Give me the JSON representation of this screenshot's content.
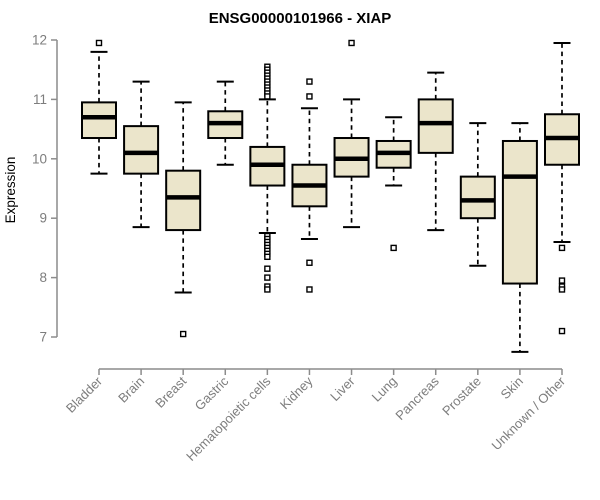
{
  "chart_data": {
    "type": "boxplot",
    "title": "ENSG00000101966 - XIAP",
    "xlabel": "",
    "ylabel": "Expression",
    "ylim": [
      7,
      12
    ],
    "yticks": [
      7,
      8,
      9,
      10,
      11,
      12
    ],
    "grid": false,
    "legend": "none",
    "box_fill": "#EBE5CB",
    "box_stroke": "#000000",
    "median_color": "#000000",
    "axis_line_color": "#8c8c8c",
    "axis_text_color": "#7d7d7d",
    "categories": [
      "Bladder",
      "Brain",
      "Breast",
      "Gastric",
      "Hematopoietic cells",
      "Kidney",
      "Liver",
      "Lung",
      "Pancreas",
      "Prostate",
      "Skin",
      "Unknown / Other"
    ],
    "boxes": [
      {
        "category": "Bladder",
        "low": 9.75,
        "q1": 10.35,
        "median": 10.7,
        "q3": 10.95,
        "high": 11.8,
        "outliers": [
          11.95
        ]
      },
      {
        "category": "Brain",
        "low": 8.85,
        "q1": 9.75,
        "median": 10.1,
        "q3": 10.55,
        "high": 11.3,
        "outliers": []
      },
      {
        "category": "Breast",
        "low": 7.75,
        "q1": 8.8,
        "median": 9.35,
        "q3": 9.8,
        "high": 10.95,
        "outliers": [
          7.05
        ]
      },
      {
        "category": "Gastric",
        "low": 9.9,
        "q1": 10.35,
        "median": 10.6,
        "q3": 10.8,
        "high": 11.3,
        "outliers": []
      },
      {
        "category": "Hematopoietic cells",
        "low": 8.75,
        "q1": 9.55,
        "median": 9.9,
        "q3": 10.2,
        "high": 11.0,
        "outliers": [
          11.55,
          11.5,
          11.45,
          11.4,
          11.35,
          11.3,
          11.25,
          11.2,
          11.15,
          11.1,
          11.05,
          8.7,
          8.65,
          8.6,
          8.55,
          8.5,
          8.45,
          8.4,
          8.35,
          8.15,
          8.0,
          7.85,
          7.8
        ]
      },
      {
        "category": "Kidney",
        "low": 8.65,
        "q1": 9.2,
        "median": 9.55,
        "q3": 9.9,
        "high": 10.85,
        "outliers": [
          11.3,
          11.05,
          8.25,
          7.8
        ]
      },
      {
        "category": "Liver",
        "low": 8.85,
        "q1": 9.7,
        "median": 10.0,
        "q3": 10.35,
        "high": 11.0,
        "outliers": [
          11.95
        ]
      },
      {
        "category": "Lung",
        "low": 9.55,
        "q1": 9.85,
        "median": 10.1,
        "q3": 10.3,
        "high": 10.7,
        "outliers": [
          8.5
        ]
      },
      {
        "category": "Pancreas",
        "low": 8.8,
        "q1": 10.1,
        "median": 10.6,
        "q3": 11.0,
        "high": 11.45,
        "outliers": []
      },
      {
        "category": "Prostate",
        "low": 8.2,
        "q1": 9.0,
        "median": 9.3,
        "q3": 9.7,
        "high": 10.6,
        "outliers": []
      },
      {
        "category": "Skin",
        "low": 6.75,
        "q1": 7.9,
        "median": 9.7,
        "q3": 10.3,
        "high": 10.6,
        "outliers": []
      },
      {
        "category": "Unknown / Other",
        "low": 8.6,
        "q1": 9.9,
        "median": 10.35,
        "q3": 10.75,
        "high": 11.95,
        "outliers": [
          8.5,
          7.95,
          7.85,
          7.8,
          7.1
        ]
      }
    ]
  }
}
